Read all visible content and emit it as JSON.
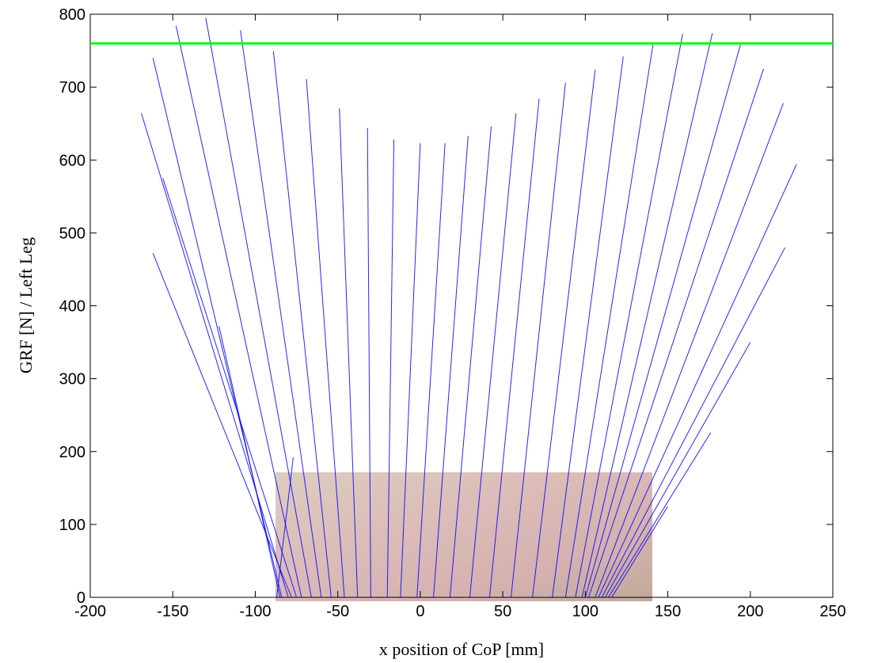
{
  "chart_data": {
    "type": "vector",
    "xlabel": "x position of CoP [mm]",
    "ylabel": "GRF [N] / Left Leg",
    "xlim": [
      -200,
      250
    ],
    "ylim": [
      0,
      800
    ],
    "xticks": [
      -200,
      -150,
      -100,
      -50,
      0,
      50,
      100,
      150,
      200,
      250
    ],
    "yticks": [
      0,
      100,
      200,
      300,
      400,
      500,
      600,
      700,
      800
    ],
    "color": "#0000ff",
    "reference_line": {
      "y": 760,
      "color": "#00ff00"
    },
    "cop_x": [
      -78,
      -80,
      -84,
      -75,
      -72,
      -66,
      -85,
      -60,
      -87,
      -54,
      -46,
      -38,
      -30,
      -20,
      -12,
      -2,
      8,
      18,
      30,
      42,
      55,
      68,
      80,
      88,
      94,
      98,
      100,
      102,
      106,
      108,
      110,
      112,
      114,
      116
    ],
    "tip_x": [
      -162,
      -169,
      -162,
      -156,
      -148,
      -130,
      -122,
      -109,
      -77,
      -89,
      -69,
      -49,
      -32,
      -16,
      0,
      15,
      29,
      43,
      58,
      72,
      88,
      106,
      123,
      141,
      159,
      177,
      194,
      208,
      220,
      228,
      221,
      200,
      176,
      150
    ],
    "tip_y": [
      472,
      664,
      740,
      575,
      784,
      795,
      372,
      778,
      192,
      749,
      711,
      671,
      644,
      628,
      623,
      623,
      633,
      646,
      664,
      684,
      706,
      724,
      742,
      758,
      773,
      774,
      758,
      725,
      678,
      594,
      480,
      350,
      226,
      125
    ]
  }
}
